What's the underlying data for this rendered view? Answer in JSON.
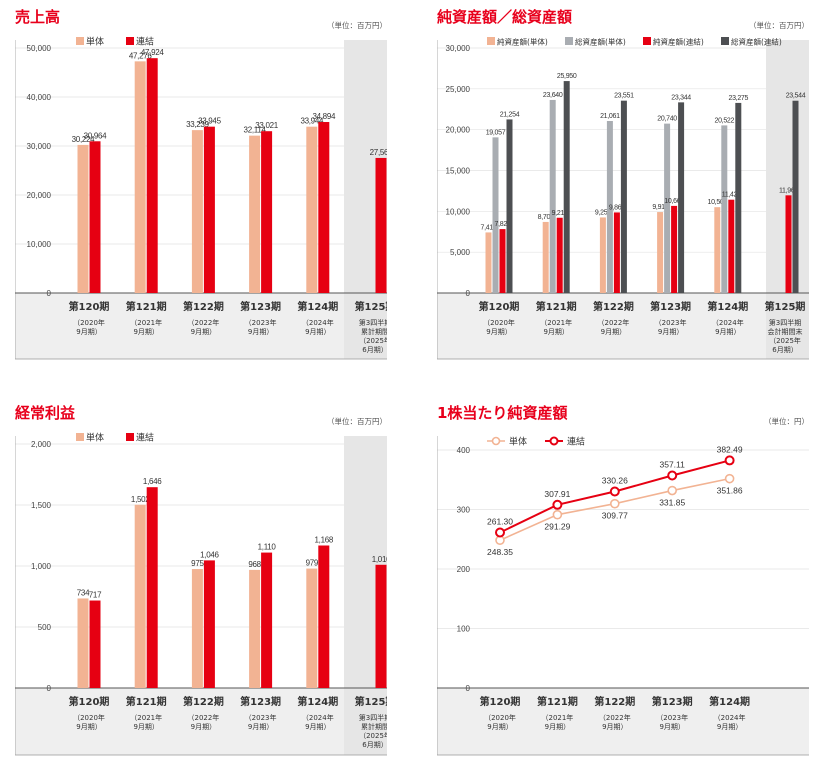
{
  "colors": {
    "single": "#f2b393",
    "consolidated": "#e60012",
    "total_single": "#a9adb2",
    "total_consolidated": "#4d4f52",
    "accent": "#e8001c",
    "forecast_bg": "#e6e6e6"
  },
  "charts": {
    "sales": {
      "title": "売上高",
      "unit": "（単位：百万円）"
    },
    "assets": {
      "title": "純資産額／総資産額",
      "unit": "（単位：百万円）"
    },
    "profit": {
      "title": "経常利益",
      "unit": "（単位：百万円）"
    },
    "bps": {
      "title": "1株当たり純資産額",
      "unit": "（単位：円）"
    }
  },
  "chart_data": [
    {
      "type": "bar",
      "title": "売上高",
      "categories": [
        [
          "第120期",
          "（2020年",
          "9月期）"
        ],
        [
          "第121期",
          "（2021年",
          "9月期）"
        ],
        [
          "第122期",
          "（2022年",
          "9月期）"
        ],
        [
          "第123期",
          "（2023年",
          "9月期）"
        ],
        [
          "第124期",
          "（2024年",
          "9月期）"
        ],
        [
          "第125期",
          "第3四半期",
          "累計期間",
          "（2025年",
          "6月期）"
        ]
      ],
      "series": [
        {
          "name": "単体",
          "values": [
            30224,
            47276,
            33239,
            32114,
            33944,
            null
          ],
          "labels": [
            "30,224",
            "47,276",
            "33,239",
            "32,114",
            "33,944",
            ""
          ]
        },
        {
          "name": "連結",
          "values": [
            30964,
            47924,
            33945,
            33021,
            34894,
            27563
          ],
          "labels": [
            "30,964",
            "47,924",
            "33,945",
            "33,021",
            "34,894",
            "27,563"
          ]
        }
      ],
      "ylim": [
        0,
        50000
      ],
      "yticks": [
        "0",
        "10,000",
        "20,000",
        "30,000",
        "40,000",
        "50,000"
      ],
      "legend": "top-left",
      "highlight_last": true
    },
    {
      "type": "bar",
      "title": "純資産額／総資産額",
      "categories": [
        [
          "第120期",
          "（2020年",
          "9月期）"
        ],
        [
          "第121期",
          "（2021年",
          "9月期）"
        ],
        [
          "第122期",
          "（2022年",
          "9月期）"
        ],
        [
          "第123期",
          "（2023年",
          "9月期）"
        ],
        [
          "第124期",
          "（2024年",
          "9月期）"
        ],
        [
          "第125期",
          "第3四半期",
          "会計期間末",
          "（2025年",
          "6月期）"
        ]
      ],
      "series": [
        {
          "name": "純資産額(単体)",
          "values": [
            7418,
            8701,
            9253,
            9911,
            10509,
            null
          ],
          "labels": [
            "7,418",
            "8,701",
            "9,253",
            "9,911",
            "10,509",
            ""
          ]
        },
        {
          "name": "総資産額(単体)",
          "values": [
            19057,
            23640,
            21061,
            20740,
            20522,
            null
          ],
          "labels": [
            "19,057",
            "23,640",
            "21,061",
            "20,740",
            "20,522",
            ""
          ]
        },
        {
          "name": "純資産額(連結)",
          "values": [
            7825,
            9214,
            9865,
            10666,
            11424,
            11961
          ],
          "labels": [
            "7,825",
            "9,214",
            "9,865",
            "10,666",
            "11,424",
            "11,961"
          ]
        },
        {
          "name": "総資産額(連結)",
          "values": [
            21254,
            25950,
            23551,
            23344,
            23275,
            23544
          ],
          "labels": [
            "21,254",
            "25,950",
            "23,551",
            "23,344",
            "23,275",
            "23,544"
          ]
        }
      ],
      "ylim": [
        0,
        30000
      ],
      "yticks": [
        "0",
        "5,000",
        "10,000",
        "15,000",
        "20,000",
        "25,000",
        "30,000"
      ],
      "legend": "top",
      "highlight_last": true
    },
    {
      "type": "bar",
      "title": "経常利益",
      "categories": [
        [
          "第120期",
          "（2020年",
          "9月期）"
        ],
        [
          "第121期",
          "（2021年",
          "9月期）"
        ],
        [
          "第122期",
          "（2022年",
          "9月期）"
        ],
        [
          "第123期",
          "（2023年",
          "9月期）"
        ],
        [
          "第124期",
          "（2024年",
          "9月期）"
        ],
        [
          "第125期",
          "第3四半期",
          "累計期間",
          "（2025年",
          "6月期）"
        ]
      ],
      "series": [
        {
          "name": "単体",
          "values": [
            734,
            1502,
            975,
            968,
            979,
            null
          ],
          "labels": [
            "734",
            "1,502",
            "975",
            "968",
            "979",
            ""
          ]
        },
        {
          "name": "連結",
          "values": [
            717,
            1646,
            1046,
            1110,
            1168,
            1010
          ],
          "labels": [
            "717",
            "1,646",
            "1,046",
            "1,110",
            "1,168",
            "1,010"
          ]
        }
      ],
      "ylim": [
        0,
        2000
      ],
      "yticks": [
        "0",
        "500",
        "1,000",
        "1,500",
        "2,000"
      ],
      "legend": "top-left",
      "highlight_last": true
    },
    {
      "type": "line",
      "title": "1株当たり純資産額",
      "categories": [
        [
          "第120期",
          "（2020年",
          "9月期）"
        ],
        [
          "第121期",
          "（2021年",
          "9月期）"
        ],
        [
          "第122期",
          "（2022年",
          "9月期）"
        ],
        [
          "第123期",
          "（2023年",
          "9月期）"
        ],
        [
          "第124期",
          "（2024年",
          "9月期）"
        ]
      ],
      "series": [
        {
          "name": "単体",
          "values": [
            248.35,
            291.29,
            309.77,
            331.85,
            351.86
          ],
          "labels": [
            "248.35",
            "291.29",
            "309.77",
            "331.85",
            "351.86"
          ]
        },
        {
          "name": "連結",
          "values": [
            261.3,
            307.91,
            330.26,
            357.11,
            382.49
          ],
          "labels": [
            "261.30",
            "307.91",
            "330.26",
            "357.11",
            "382.49"
          ]
        }
      ],
      "ylim": [
        0,
        400
      ],
      "yticks": [
        "0",
        "100",
        "200",
        "300",
        "400"
      ],
      "legend": "top-left"
    }
  ]
}
